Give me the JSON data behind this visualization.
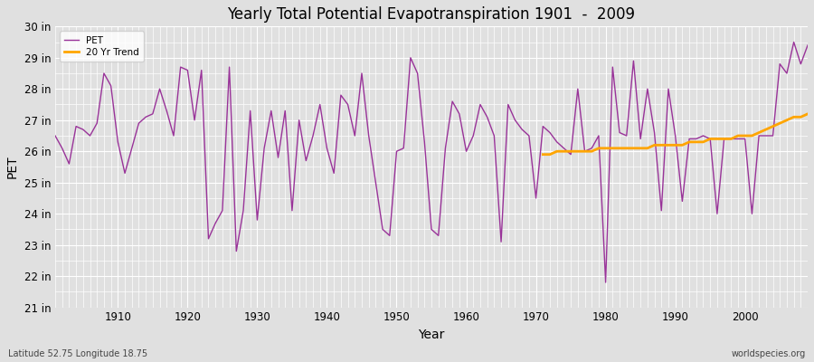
{
  "title": "Yearly Total Potential Evapotranspiration 1901  -  2009",
  "xlabel": "Year",
  "ylabel": "PET",
  "footnote_left": "Latitude 52.75 Longitude 18.75",
  "footnote_right": "worldspecies.org",
  "pet_color": "#993399",
  "trend_color": "#FFA500",
  "background_color": "#E0E0E0",
  "grid_color": "#FFFFFF",
  "ylim_min": 21,
  "ylim_max": 30,
  "ytick_labels": [
    "21 in",
    "22 in",
    "23 in",
    "24 in",
    "25 in",
    "26 in",
    "27 in",
    "28 in",
    "29 in",
    "30 in"
  ],
  "ytick_values": [
    21,
    22,
    23,
    24,
    25,
    26,
    27,
    28,
    29,
    30
  ],
  "years": [
    1901,
    1902,
    1903,
    1904,
    1905,
    1906,
    1907,
    1908,
    1909,
    1910,
    1911,
    1912,
    1913,
    1914,
    1915,
    1916,
    1917,
    1918,
    1919,
    1920,
    1921,
    1922,
    1923,
    1924,
    1925,
    1926,
    1927,
    1928,
    1929,
    1930,
    1931,
    1932,
    1933,
    1934,
    1935,
    1936,
    1937,
    1938,
    1939,
    1940,
    1941,
    1942,
    1943,
    1944,
    1945,
    1946,
    1947,
    1948,
    1949,
    1950,
    1951,
    1952,
    1953,
    1954,
    1955,
    1956,
    1957,
    1958,
    1959,
    1960,
    1961,
    1962,
    1963,
    1964,
    1965,
    1966,
    1967,
    1968,
    1969,
    1970,
    1971,
    1972,
    1973,
    1974,
    1975,
    1976,
    1977,
    1978,
    1979,
    1980,
    1981,
    1982,
    1983,
    1984,
    1985,
    1986,
    1987,
    1988,
    1989,
    1990,
    1991,
    1992,
    1993,
    1994,
    1995,
    1996,
    1997,
    1998,
    1999,
    2000,
    2001,
    2002,
    2003,
    2004,
    2005,
    2006,
    2007,
    2008,
    2009
  ],
  "pet_values": [
    26.5,
    26.1,
    25.6,
    26.8,
    26.7,
    26.5,
    26.9,
    28.5,
    28.1,
    26.3,
    25.3,
    26.1,
    26.9,
    27.1,
    27.2,
    28.0,
    27.3,
    26.5,
    28.7,
    28.6,
    27.0,
    28.6,
    23.2,
    23.7,
    24.1,
    28.7,
    22.8,
    24.1,
    27.3,
    23.8,
    26.1,
    27.3,
    25.8,
    27.3,
    24.1,
    27.0,
    25.7,
    26.5,
    27.5,
    26.1,
    25.3,
    27.8,
    27.5,
    26.5,
    28.5,
    26.5,
    25.0,
    23.5,
    23.3,
    26.0,
    26.1,
    29.0,
    28.5,
    26.3,
    23.5,
    23.3,
    26.1,
    27.6,
    27.2,
    26.0,
    26.5,
    27.5,
    27.1,
    26.5,
    23.1,
    27.5,
    27.0,
    26.7,
    26.5,
    24.5,
    26.8,
    26.6,
    26.3,
    26.1,
    25.9,
    28.0,
    26.0,
    26.1,
    26.5,
    21.8,
    28.7,
    26.6,
    26.5,
    28.9,
    26.4,
    28.0,
    26.6,
    24.1,
    28.0,
    26.5,
    24.4,
    26.4,
    26.4,
    26.5,
    26.4,
    24.0,
    26.4,
    26.4,
    26.4,
    26.4,
    24.0,
    26.5,
    26.5,
    26.5,
    28.8,
    28.5,
    29.5,
    28.8,
    29.4
  ],
  "segments": [
    [
      1901,
      1902,
      1903,
      1904,
      1905,
      1906,
      1907,
      1908,
      1909,
      1910,
      1911,
      1912,
      1913,
      1914,
      1915,
      1916,
      1917,
      1918,
      1919,
      1920,
      1921,
      1922,
      1923,
      1924,
      1925,
      1926,
      1927,
      1928,
      1929,
      1930,
      1931,
      1932,
      1933,
      1934,
      1935,
      1936,
      1937,
      1938,
      1939,
      1940,
      1941,
      1942,
      1943,
      1944,
      1945,
      1946,
      1947,
      1948,
      1949,
      1950,
      1951,
      1952,
      1953,
      1954,
      1955,
      1956,
      1957,
      1958,
      1959,
      1960,
      1961,
      1962,
      1963,
      1964,
      1965,
      1966,
      1967,
      1968,
      1969,
      1970,
      1971,
      1972,
      1973,
      1974,
      1975,
      1976,
      1977,
      1978,
      1979,
      1980,
      1981,
      1982,
      1983,
      1984,
      1985,
      1986,
      1987,
      1988,
      1989,
      1990,
      1991,
      1992,
      1993,
      1994,
      1995,
      1996,
      1997,
      1998,
      1999,
      2000,
      2001,
      2002,
      2003,
      2004,
      2005,
      2006,
      2007,
      2008,
      2009
    ]
  ],
  "isolated_points": [
    [
      1929,
      27.3
    ],
    [
      1933,
      25.8
    ],
    [
      1934,
      27.3
    ]
  ],
  "trend_values_years": [
    1971,
    1972,
    1973,
    1974,
    1975,
    1976,
    1977,
    1978,
    1979,
    1980,
    1981,
    1982,
    1983,
    1984,
    1985,
    1986,
    1987,
    1988,
    1989,
    1990,
    1991,
    1992,
    1993,
    1994,
    1995,
    1996,
    1997,
    1998,
    1999,
    2000,
    2001,
    2002,
    2003,
    2004,
    2005,
    2006,
    2007,
    2008,
    2009
  ],
  "trend_values": [
    25.9,
    25.9,
    26.0,
    26.0,
    26.0,
    26.0,
    26.0,
    26.0,
    26.1,
    26.1,
    26.1,
    26.1,
    26.1,
    26.1,
    26.1,
    26.1,
    26.2,
    26.2,
    26.2,
    26.2,
    26.2,
    26.3,
    26.3,
    26.3,
    26.4,
    26.4,
    26.4,
    26.4,
    26.5,
    26.5,
    26.5,
    26.6,
    26.7,
    26.8,
    26.9,
    27.0,
    27.1,
    27.1,
    27.2
  ]
}
